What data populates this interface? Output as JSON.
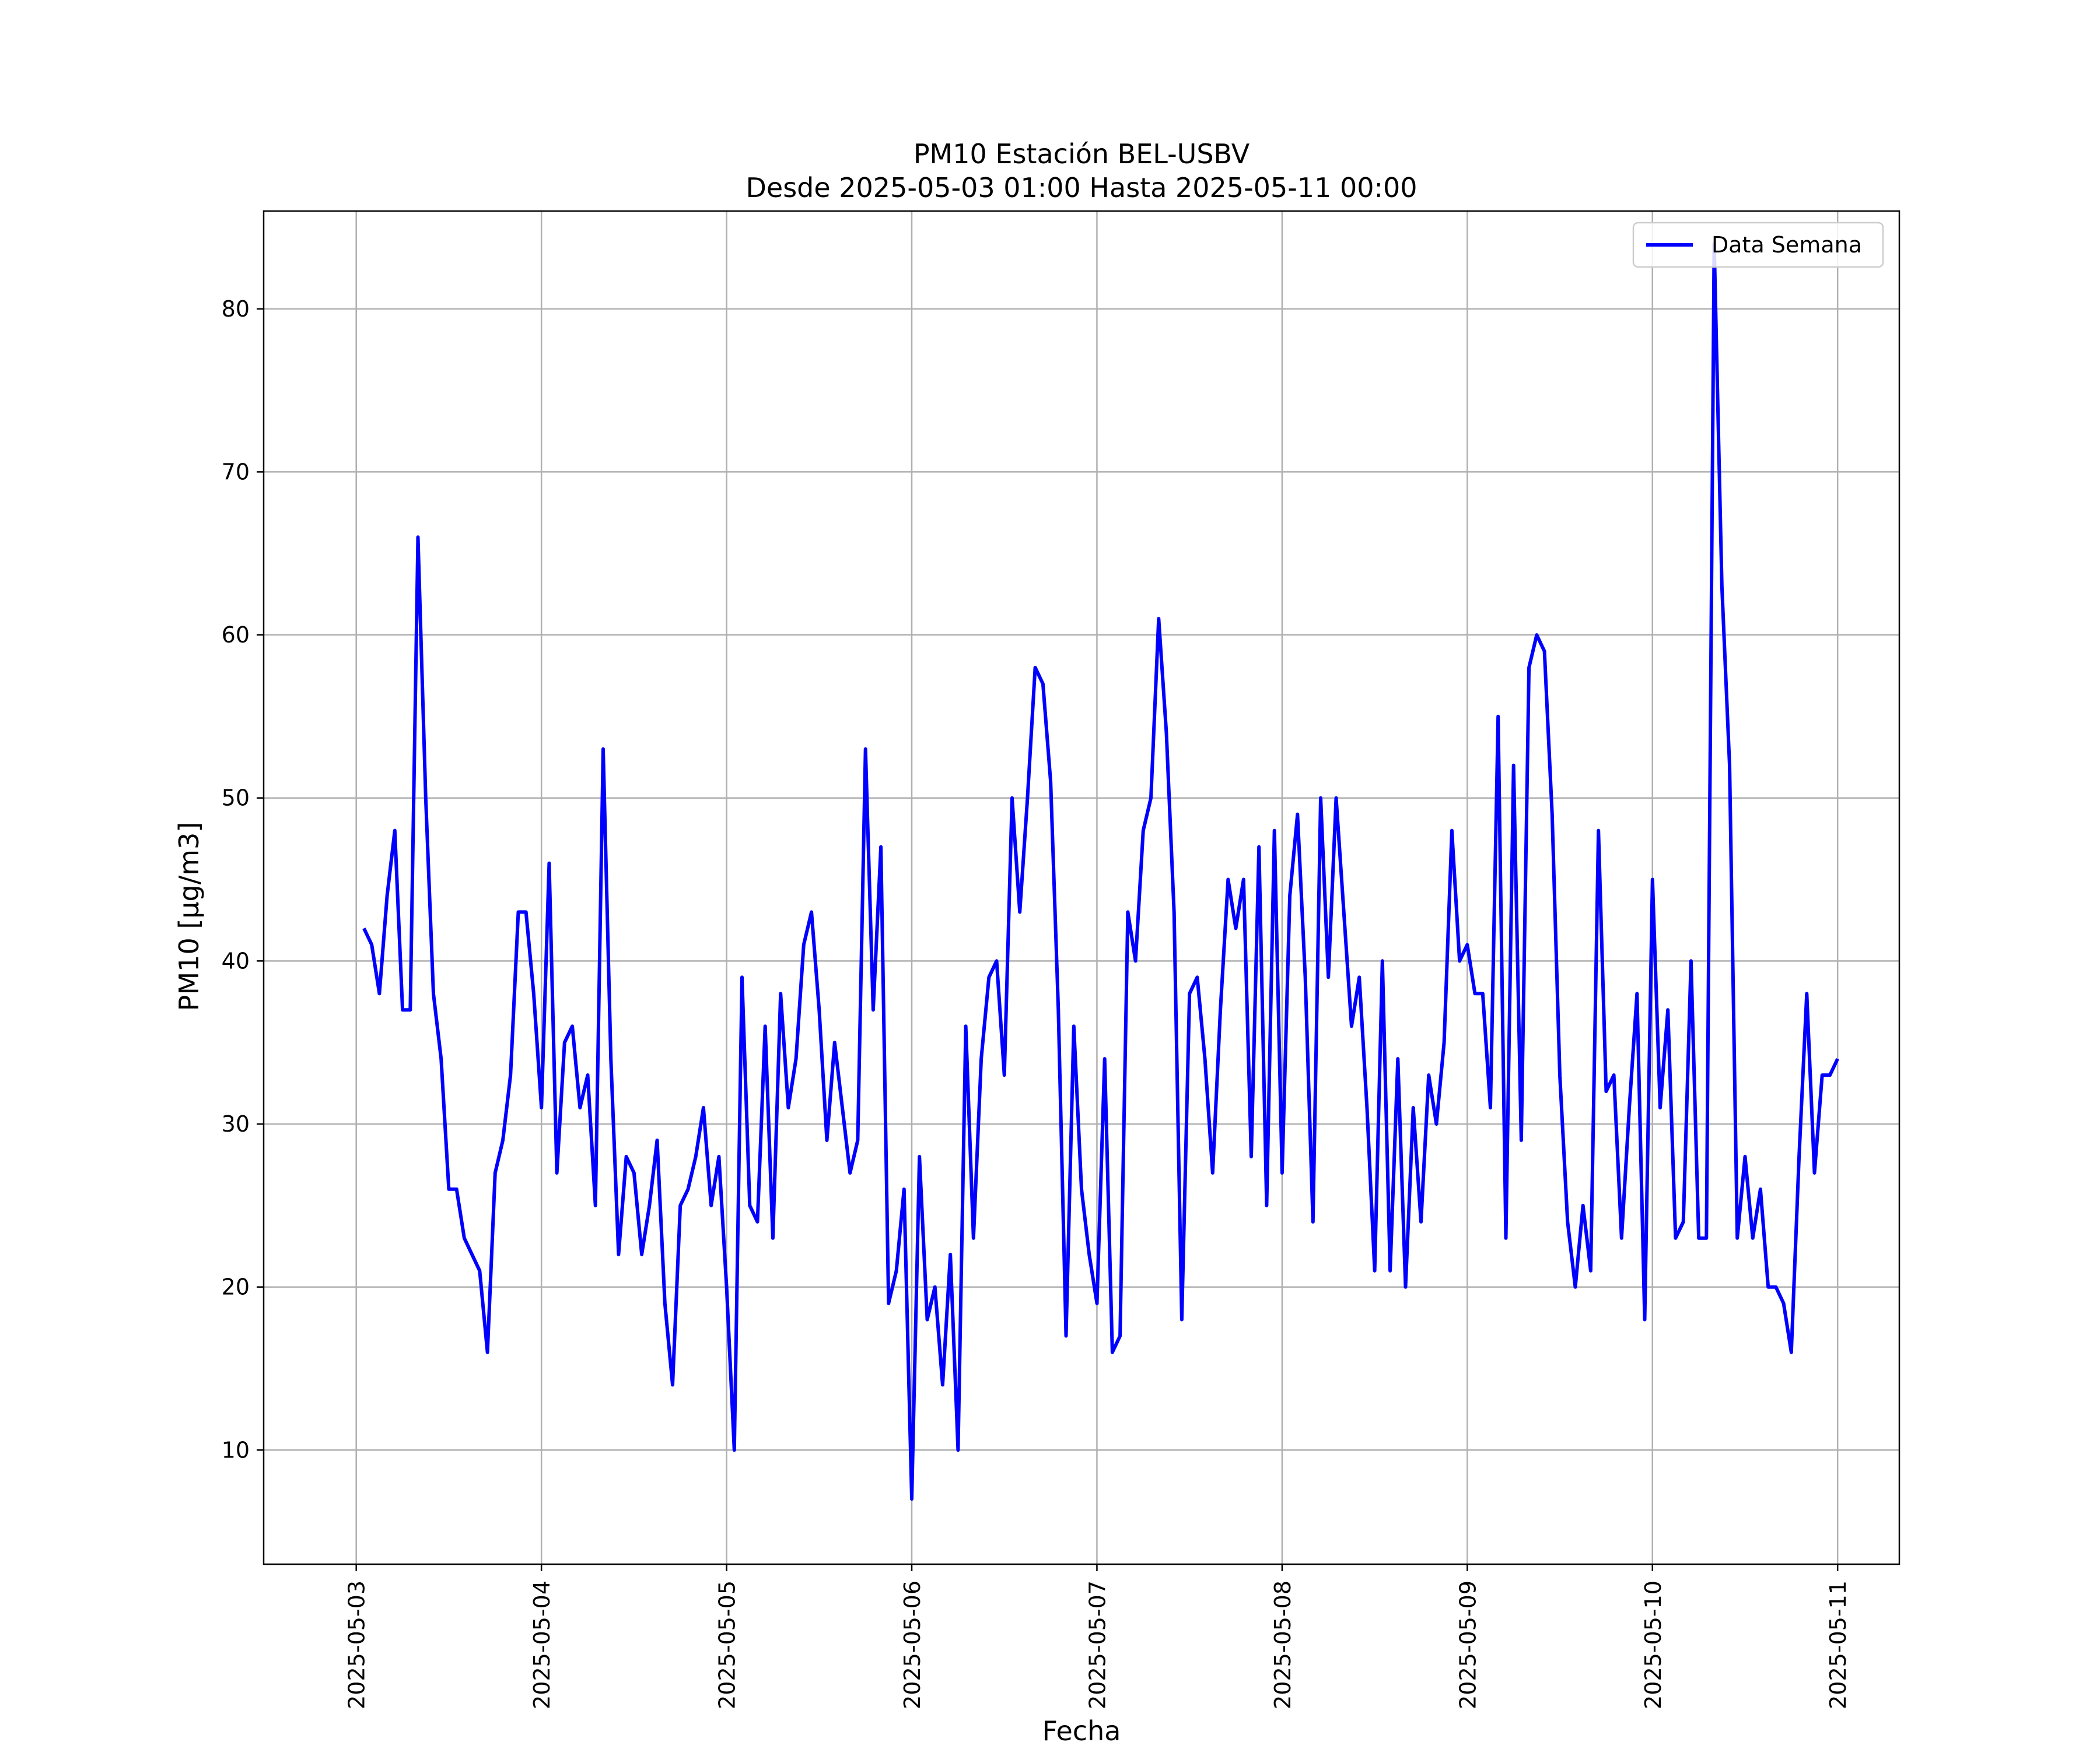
{
  "chart_data": {
    "type": "line",
    "title": "PM10 Estación BEL-USBV",
    "subtitle": "Desde 2025-05-03 01:00 Hasta 2025-05-11 00:00",
    "xlabel": "Fecha",
    "ylabel": "PM10 [µg/m3]",
    "xlim": [
      "2025-05-02 12:00",
      "2025-05-11 08:00"
    ],
    "ylim": [
      3,
      86
    ],
    "x_ticks": [
      "2025-05-03",
      "2025-05-04",
      "2025-05-05",
      "2025-05-06",
      "2025-05-07",
      "2025-05-08",
      "2025-05-09",
      "2025-05-10",
      "2025-05-11"
    ],
    "y_ticks": [
      10,
      20,
      30,
      40,
      50,
      60,
      70,
      80
    ],
    "grid": true,
    "legend_position": "top-right",
    "colors": {
      "series": "#0000ff",
      "grid": "#b0b0b0"
    },
    "series": [
      {
        "name": "Data Semana",
        "x": [
          "2025-05-03 01:00",
          "2025-05-03 02:00",
          "2025-05-03 03:00",
          "2025-05-03 04:00",
          "2025-05-03 05:00",
          "2025-05-03 06:00",
          "2025-05-03 07:00",
          "2025-05-03 08:00",
          "2025-05-03 09:00",
          "2025-05-03 10:00",
          "2025-05-03 11:00",
          "2025-05-03 12:00",
          "2025-05-03 13:00",
          "2025-05-03 14:00",
          "2025-05-03 15:00",
          "2025-05-03 16:00",
          "2025-05-03 17:00",
          "2025-05-03 18:00",
          "2025-05-03 19:00",
          "2025-05-03 20:00",
          "2025-05-03 21:00",
          "2025-05-03 22:00",
          "2025-05-03 23:00",
          "2025-05-04 00:00",
          "2025-05-04 01:00",
          "2025-05-04 02:00",
          "2025-05-04 03:00",
          "2025-05-04 04:00",
          "2025-05-04 05:00",
          "2025-05-04 06:00",
          "2025-05-04 07:00",
          "2025-05-04 08:00",
          "2025-05-04 09:00",
          "2025-05-04 10:00",
          "2025-05-04 11:00",
          "2025-05-04 12:00",
          "2025-05-04 13:00",
          "2025-05-04 14:00",
          "2025-05-04 15:00",
          "2025-05-04 16:00",
          "2025-05-04 17:00",
          "2025-05-04 18:00",
          "2025-05-04 19:00",
          "2025-05-04 20:00",
          "2025-05-04 21:00",
          "2025-05-04 22:00",
          "2025-05-04 23:00",
          "2025-05-05 00:00",
          "2025-05-05 01:00",
          "2025-05-05 02:00",
          "2025-05-05 03:00",
          "2025-05-05 04:00",
          "2025-05-05 05:00",
          "2025-05-05 06:00",
          "2025-05-05 07:00",
          "2025-05-05 08:00",
          "2025-05-05 09:00",
          "2025-05-05 10:00",
          "2025-05-05 11:00",
          "2025-05-05 12:00",
          "2025-05-05 13:00",
          "2025-05-05 14:00",
          "2025-05-05 15:00",
          "2025-05-05 16:00",
          "2025-05-05 17:00",
          "2025-05-05 18:00",
          "2025-05-05 19:00",
          "2025-05-05 20:00",
          "2025-05-05 21:00",
          "2025-05-05 22:00",
          "2025-05-05 23:00",
          "2025-05-06 00:00",
          "2025-05-06 01:00",
          "2025-05-06 02:00",
          "2025-05-06 03:00",
          "2025-05-06 04:00",
          "2025-05-06 05:00",
          "2025-05-06 06:00",
          "2025-05-06 07:00",
          "2025-05-06 08:00",
          "2025-05-06 09:00",
          "2025-05-06 10:00",
          "2025-05-06 11:00",
          "2025-05-06 12:00",
          "2025-05-06 13:00",
          "2025-05-06 14:00",
          "2025-05-06 15:00",
          "2025-05-06 16:00",
          "2025-05-06 17:00",
          "2025-05-06 18:00",
          "2025-05-06 19:00",
          "2025-05-06 20:00",
          "2025-05-06 21:00",
          "2025-05-06 22:00",
          "2025-05-06 23:00",
          "2025-05-07 00:00",
          "2025-05-07 01:00",
          "2025-05-07 02:00",
          "2025-05-07 03:00",
          "2025-05-07 04:00",
          "2025-05-07 05:00",
          "2025-05-07 06:00",
          "2025-05-07 07:00",
          "2025-05-07 08:00",
          "2025-05-07 09:00",
          "2025-05-07 10:00",
          "2025-05-07 11:00",
          "2025-05-07 12:00",
          "2025-05-07 13:00",
          "2025-05-07 14:00",
          "2025-05-07 15:00",
          "2025-05-07 16:00",
          "2025-05-07 17:00",
          "2025-05-07 18:00",
          "2025-05-07 19:00",
          "2025-05-07 20:00",
          "2025-05-07 21:00",
          "2025-05-07 22:00",
          "2025-05-07 23:00",
          "2025-05-08 00:00",
          "2025-05-08 01:00",
          "2025-05-08 02:00",
          "2025-05-08 03:00",
          "2025-05-08 04:00",
          "2025-05-08 05:00",
          "2025-05-08 06:00",
          "2025-05-08 07:00",
          "2025-05-08 08:00",
          "2025-05-08 09:00",
          "2025-05-08 10:00",
          "2025-05-08 11:00",
          "2025-05-08 12:00",
          "2025-05-08 13:00",
          "2025-05-08 14:00",
          "2025-05-08 15:00",
          "2025-05-08 16:00",
          "2025-05-08 17:00",
          "2025-05-08 18:00",
          "2025-05-08 19:00",
          "2025-05-08 20:00",
          "2025-05-08 21:00",
          "2025-05-08 22:00",
          "2025-05-08 23:00",
          "2025-05-09 00:00",
          "2025-05-09 01:00",
          "2025-05-09 02:00",
          "2025-05-09 03:00",
          "2025-05-09 04:00",
          "2025-05-09 05:00",
          "2025-05-09 06:00",
          "2025-05-09 07:00",
          "2025-05-09 08:00",
          "2025-05-09 09:00",
          "2025-05-09 10:00",
          "2025-05-09 11:00",
          "2025-05-09 12:00",
          "2025-05-09 13:00",
          "2025-05-09 14:00",
          "2025-05-09 15:00",
          "2025-05-09 16:00",
          "2025-05-09 17:00",
          "2025-05-09 18:00",
          "2025-05-09 19:00",
          "2025-05-09 20:00",
          "2025-05-09 21:00",
          "2025-05-09 22:00",
          "2025-05-09 23:00",
          "2025-05-10 00:00",
          "2025-05-10 01:00",
          "2025-05-10 02:00",
          "2025-05-10 03:00",
          "2025-05-10 04:00",
          "2025-05-10 05:00",
          "2025-05-10 06:00",
          "2025-05-10 07:00",
          "2025-05-10 08:00",
          "2025-05-10 09:00",
          "2025-05-10 10:00",
          "2025-05-10 11:00",
          "2025-05-10 12:00",
          "2025-05-10 13:00",
          "2025-05-10 14:00",
          "2025-05-10 15:00",
          "2025-05-10 16:00",
          "2025-05-10 17:00",
          "2025-05-10 18:00",
          "2025-05-10 19:00",
          "2025-05-10 20:00",
          "2025-05-10 21:00",
          "2025-05-10 22:00",
          "2025-05-10 23:00",
          "2025-05-11 00:00"
        ],
        "values": [
          42,
          41,
          38,
          44,
          48,
          37,
          37,
          66,
          50,
          38,
          34,
          26,
          26,
          23,
          22,
          21,
          16,
          27,
          29,
          33,
          43,
          43,
          38,
          31,
          46,
          27,
          35,
          36,
          31,
          33,
          25,
          53,
          34,
          22,
          28,
          27,
          22,
          25,
          29,
          19,
          14,
          25,
          26,
          28,
          31,
          25,
          28,
          20,
          10,
          39,
          25,
          24,
          36,
          23,
          38,
          31,
          34,
          41,
          43,
          37,
          29,
          35,
          31,
          27,
          29,
          53,
          37,
          47,
          19,
          21,
          26,
          7,
          28,
          18,
          20,
          14,
          22,
          10,
          36,
          23,
          34,
          39,
          40,
          33,
          50,
          43,
          50,
          58,
          57,
          51,
          37,
          17,
          36,
          26,
          22,
          19,
          34,
          16,
          17,
          43,
          40,
          48,
          50,
          61,
          54,
          43,
          18,
          38,
          39,
          34,
          27,
          37,
          45,
          42,
          45,
          28,
          47,
          25,
          48,
          27,
          44,
          49,
          39,
          24,
          50,
          39,
          50,
          43,
          36,
          39,
          31,
          21,
          40,
          21,
          34,
          20,
          31,
          24,
          33,
          30,
          35,
          48,
          40,
          41,
          38,
          38,
          31,
          55,
          23,
          52,
          29,
          58,
          60,
          59,
          49,
          33,
          24,
          20,
          25,
          21,
          48,
          32,
          33,
          23,
          31,
          38,
          18,
          45,
          31,
          37,
          23,
          24,
          40,
          23,
          23,
          84,
          63,
          52,
          23,
          28,
          23,
          26,
          20,
          20,
          19,
          16,
          28,
          38,
          27,
          33,
          33,
          34
        ]
      }
    ]
  }
}
